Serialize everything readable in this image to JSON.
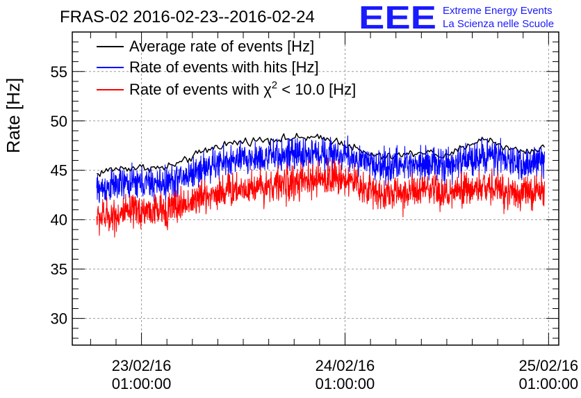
{
  "colors": {
    "average": "#000000",
    "hits": "#0000ff",
    "chi2": "#ff0000",
    "brand": "#1a1aff",
    "grid": "#9a9a9a"
  },
  "logo": {
    "letters": "EEE",
    "line1": "Extreme Energy Events",
    "line2": "La Scienza nelle Scuole"
  },
  "chart_data": {
    "type": "line",
    "title": "FRAS-02 2016-02-23--2016-02-24",
    "xlabel": "",
    "ylabel": "Rate [Hz]",
    "xlim": [
      -0.34,
      2.05
    ],
    "ylim": [
      27.3,
      59
    ],
    "grid": true,
    "legend_position": "top-left",
    "x_ticks": [
      {
        "value": 0,
        "line1": "23/02/16",
        "line2": "01:00:00"
      },
      {
        "value": 1,
        "line1": "24/02/16",
        "line2": "01:00:00"
      },
      {
        "value": 2,
        "line1": "25/02/16",
        "line2": "01:00:00"
      }
    ],
    "y_ticks": [
      30,
      35,
      40,
      45,
      50,
      55
    ],
    "series": [
      {
        "name": "Average rate of events [Hz]",
        "legend": {
          "prefix": "Average rate of events [Hz]"
        },
        "color": "#000000",
        "x": [
          -0.22,
          -0.15,
          -0.08,
          0.0,
          0.1,
          0.2,
          0.3,
          0.4,
          0.5,
          0.6,
          0.7,
          0.8,
          0.9,
          0.95,
          1.0,
          1.05,
          1.1,
          1.2,
          1.3,
          1.4,
          1.5,
          1.6,
          1.7,
          1.8,
          1.9,
          1.98
        ],
        "y": [
          44.6,
          45.1,
          45.2,
          45.3,
          45.2,
          45.8,
          46.9,
          47.6,
          47.9,
          48.1,
          48.2,
          48.3,
          48.2,
          48.0,
          47.7,
          47.2,
          46.7,
          46.3,
          46.6,
          46.9,
          46.3,
          47.6,
          48.2,
          47.2,
          46.9,
          47.3
        ],
        "noise": 0.35,
        "samples": 280
      },
      {
        "name": "Rate of events with hits [Hz]",
        "legend": {
          "prefix": "Rate of events with hits [Hz]"
        },
        "color": "#0000ff",
        "x": [
          -0.22,
          -0.15,
          -0.08,
          0.0,
          0.1,
          0.2,
          0.3,
          0.4,
          0.5,
          0.6,
          0.7,
          0.8,
          0.9,
          0.95,
          1.0,
          1.05,
          1.1,
          1.2,
          1.3,
          1.4,
          1.5,
          1.6,
          1.7,
          1.8,
          1.9,
          1.98
        ],
        "y": [
          43.0,
          43.4,
          43.6,
          43.7,
          43.6,
          44.2,
          45.2,
          45.8,
          46.1,
          46.3,
          46.5,
          46.6,
          46.7,
          46.6,
          46.5,
          46.2,
          45.7,
          45.4,
          45.6,
          45.9,
          45.3,
          46.1,
          46.6,
          45.9,
          45.6,
          46.0
        ],
        "noise": 1.4,
        "samples": 1500
      },
      {
        "name": "Rate of events with chi2 < 10.0 [Hz]",
        "legend": {
          "prefix": "Rate of events with ",
          "symbol": "χ",
          "sup": "2",
          "suffix": " < 10.0 [Hz]"
        },
        "color": "#ff0000",
        "x": [
          -0.22,
          -0.15,
          -0.08,
          0.0,
          0.1,
          0.2,
          0.3,
          0.4,
          0.5,
          0.6,
          0.7,
          0.8,
          0.9,
          0.95,
          1.0,
          1.05,
          1.1,
          1.2,
          1.3,
          1.4,
          1.5,
          1.6,
          1.7,
          1.8,
          1.9,
          1.98
        ],
        "y": [
          40.2,
          40.4,
          40.6,
          40.9,
          40.9,
          41.5,
          42.3,
          42.9,
          43.2,
          43.4,
          43.6,
          43.8,
          44.1,
          44.3,
          44.2,
          43.7,
          43.1,
          42.6,
          42.7,
          42.9,
          42.5,
          43.0,
          43.3,
          42.9,
          42.7,
          42.9
        ],
        "noise": 1.5,
        "samples": 1500
      }
    ]
  }
}
